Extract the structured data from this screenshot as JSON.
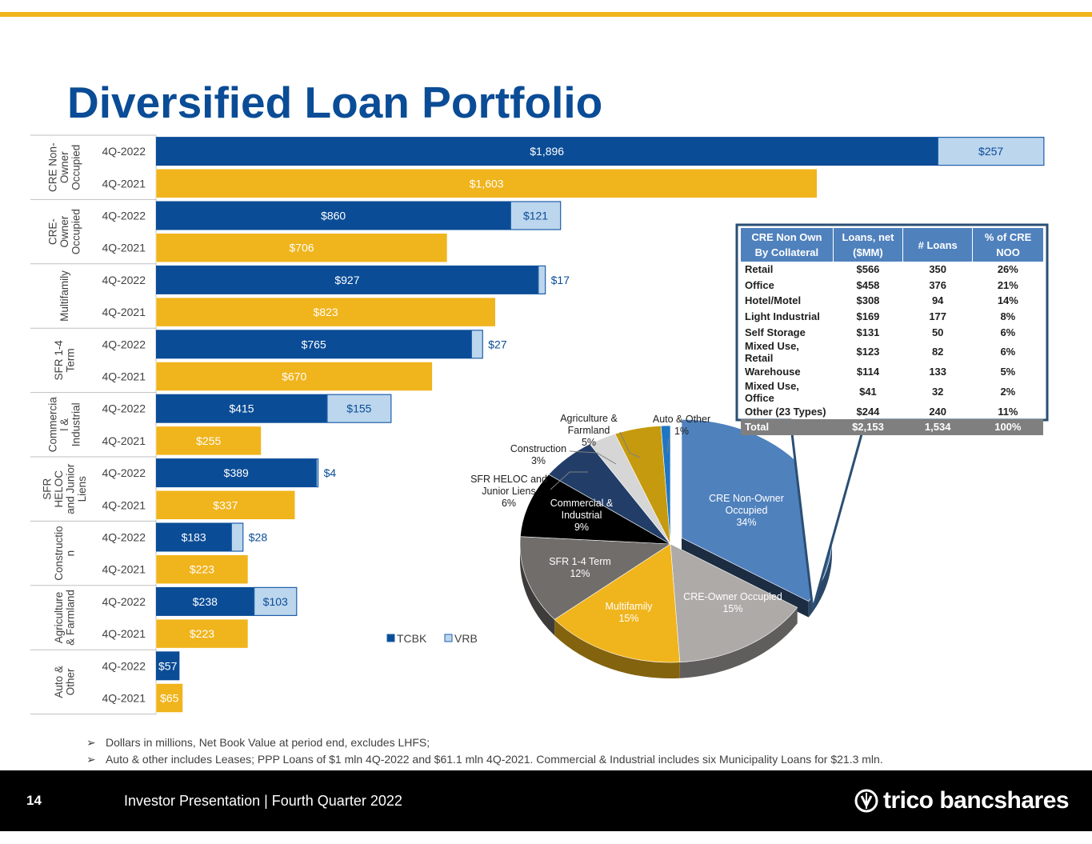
{
  "title": "Diversified Loan Portfolio",
  "chart_data": [
    {
      "type": "bar",
      "orientation": "horizontal",
      "stacked": true,
      "categories": [
        {
          "name": "CRE Non-Owner Occupied",
          "label_lines": [
            "CRE Non-",
            "Owner",
            "Occupied"
          ]
        },
        {
          "name": "CRE-Owner Occupied",
          "label_lines": [
            "CRE-",
            "Owner",
            "Occupied"
          ]
        },
        {
          "name": "Multifamily",
          "label_lines": [
            "Multifamily"
          ]
        },
        {
          "name": "SFR 1-4 Term",
          "label_lines": [
            "SFR 1-4",
            "Term"
          ]
        },
        {
          "name": "Commercial & Industrial",
          "label_lines": [
            "Commercia",
            "l &",
            "Industrial"
          ]
        },
        {
          "name": "SFR HELOC and Junior Liens",
          "label_lines": [
            "SFR",
            "HELOC",
            "and Junior",
            "Liens"
          ]
        },
        {
          "name": "Construction",
          "label_lines": [
            "Constructio",
            "n"
          ]
        },
        {
          "name": "Agriculture & Farmland",
          "label_lines": [
            "Agriculture",
            "& Farmland"
          ]
        },
        {
          "name": "Auto & Other",
          "label_lines": [
            "Auto &",
            "Other"
          ]
        }
      ],
      "rows": [
        {
          "category": 0,
          "period": "4Q-2022",
          "tcbk": 1896,
          "vrb": 257,
          "tcbk_label": "$1,896",
          "vrb_label": "$257"
        },
        {
          "category": 0,
          "period": "4Q-2021",
          "total": 1603,
          "label": "$1,603"
        },
        {
          "category": 1,
          "period": "4Q-2022",
          "tcbk": 860,
          "vrb": 121,
          "tcbk_label": "$860",
          "vrb_label": "$121"
        },
        {
          "category": 1,
          "period": "4Q-2021",
          "total": 706,
          "label": "$706"
        },
        {
          "category": 2,
          "period": "4Q-2022",
          "tcbk": 927,
          "vrb": 17,
          "tcbk_label": "$927",
          "vrb_label": "$17"
        },
        {
          "category": 2,
          "period": "4Q-2021",
          "total": 823,
          "label": "$823"
        },
        {
          "category": 3,
          "period": "4Q-2022",
          "tcbk": 765,
          "vrb": 27,
          "tcbk_label": "$765",
          "vrb_label": "$27"
        },
        {
          "category": 3,
          "period": "4Q-2021",
          "total": 670,
          "label": "$670"
        },
        {
          "category": 4,
          "period": "4Q-2022",
          "tcbk": 415,
          "vrb": 155,
          "tcbk_label": "$415",
          "vrb_label": "$155"
        },
        {
          "category": 4,
          "period": "4Q-2021",
          "total": 255,
          "label": "$255"
        },
        {
          "category": 5,
          "period": "4Q-2022",
          "tcbk": 389,
          "vrb": 4,
          "tcbk_label": "$389",
          "vrb_label": "$4"
        },
        {
          "category": 5,
          "period": "4Q-2021",
          "total": 337,
          "label": "$337"
        },
        {
          "category": 6,
          "period": "4Q-2022",
          "tcbk": 183,
          "vrb": 28,
          "tcbk_label": "$183",
          "vrb_label": "$28"
        },
        {
          "category": 6,
          "period": "4Q-2021",
          "total": 223,
          "label": "$223"
        },
        {
          "category": 7,
          "period": "4Q-2022",
          "tcbk": 238,
          "vrb": 103,
          "tcbk_label": "$238",
          "vrb_label": "$103"
        },
        {
          "category": 7,
          "period": "4Q-2021",
          "total": 223,
          "label": "$223"
        },
        {
          "category": 8,
          "period": "4Q-2022",
          "tcbk": 57,
          "vrb": 0,
          "tcbk_label": "$57",
          "vrb_label": ""
        },
        {
          "category": 8,
          "period": "4Q-2021",
          "total": 65,
          "label": "$65"
        }
      ],
      "legend": [
        {
          "name": "TCBK",
          "color": "#0a4c96"
        },
        {
          "name": "VRB",
          "color": "#bcd6ee"
        }
      ],
      "colors": {
        "tcbk": "#0a4c96",
        "vrb": "#bcd6ee",
        "prior": "#f0b41c"
      }
    },
    {
      "type": "pie",
      "style": "3d exploded",
      "slices": [
        {
          "name": "CRE Non-Owner Occupied",
          "lines": [
            "CRE Non-Owner",
            "Occupied",
            "34%"
          ],
          "value": 34,
          "color": "#4f81bd",
          "exploded": true,
          "label_inside": true
        },
        {
          "name": "CRE-Owner Occupied",
          "lines": [
            "CRE-Owner Occupied",
            "15%"
          ],
          "value": 15,
          "color": "#aeaaa8",
          "label_inside": true
        },
        {
          "name": "Multifamily",
          "lines": [
            "Multifamily",
            "15%"
          ],
          "value": 15,
          "color": "#f0b41c",
          "label_inside": true
        },
        {
          "name": "SFR 1-4 Term",
          "lines": [
            "SFR 1-4 Term",
            "12%"
          ],
          "value": 12,
          "color": "#716d6a",
          "label_inside": true
        },
        {
          "name": "Commercial & Industrial",
          "lines": [
            "Commercial &",
            "Industrial",
            "9%"
          ],
          "value": 9,
          "color": "#000000",
          "label_inside": true
        },
        {
          "name": "SFR HELOC and Junior Liens",
          "lines": [
            "SFR HELOC and",
            "Junior Liens",
            "6%"
          ],
          "value": 6,
          "color": "#223d68",
          "label_inside": false
        },
        {
          "name": "Construction",
          "lines": [
            "Construction",
            "3%"
          ],
          "value": 3,
          "color": "#d6d6d6",
          "label_inside": false
        },
        {
          "name": "Agriculture & Farmland",
          "lines": [
            "Agriculture &",
            "Farmland",
            "5%"
          ],
          "value": 5,
          "color": "#c59a0e",
          "label_inside": false
        },
        {
          "name": "Auto & Other",
          "lines": [
            "Auto & Other",
            "1%"
          ],
          "value": 1,
          "color": "#1f76c2",
          "label_inside": false
        }
      ]
    },
    {
      "type": "table",
      "headers": [
        [
          "CRE Non Own",
          "By Collateral"
        ],
        [
          "Loans, net",
          "($MM)"
        ],
        [
          "# Loans"
        ],
        [
          "% of CRE",
          "NOO"
        ]
      ],
      "rows": [
        [
          "Retail",
          "$566",
          "350",
          "26%"
        ],
        [
          "Office",
          "$458",
          "376",
          "21%"
        ],
        [
          "Hotel/Motel",
          "$308",
          "94",
          "14%"
        ],
        [
          "Light Industrial",
          "$169",
          "177",
          "8%"
        ],
        [
          "Self Storage",
          "$131",
          "50",
          "6%"
        ],
        [
          "Mixed Use, Retail",
          "$123",
          "82",
          "6%"
        ],
        [
          "Warehouse",
          "$114",
          "133",
          "5%"
        ],
        [
          "Mixed Use, Office",
          "$41",
          "32",
          "2%"
        ],
        [
          "Other (23 Types)",
          "$244",
          "240",
          "11%"
        ]
      ],
      "total": [
        "Total",
        "$2,153",
        "1,534",
        "100%"
      ]
    }
  ],
  "notes": {
    "bullet": "➢",
    "items": [
      "Dollars in millions, Net Book Value at period end, excludes LHFS;",
      "Auto & other includes Leases; PPP Loans of $1 mln 4Q-2022 and $61.1 mln 4Q-2021.  Commercial & Industrial includes six Municipality Loans for $21.3 mln."
    ]
  },
  "footer": {
    "page_number": "14",
    "text": "Investor Presentation | Fourth Quarter 2022",
    "logo_text": "trico bancshares"
  }
}
